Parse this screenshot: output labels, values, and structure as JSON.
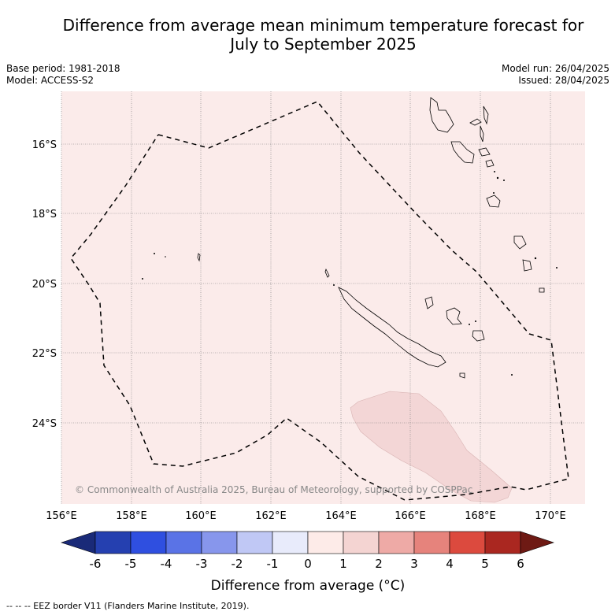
{
  "title_line1": "Difference from average mean minimum temperature forecast for",
  "title_line2": "July to September 2025",
  "meta": {
    "base_period": "Base period: 1981-2018",
    "model": "Model: ACCESS-S2",
    "model_run": "Model run: 26/04/2025",
    "issued": "Issued: 28/04/2025"
  },
  "map": {
    "background_anomaly_class": "0 to 1",
    "background_color": "#fbebea",
    "anomaly_patch_class": "1 to 2",
    "anomaly_patch_color": "#f3d6d6",
    "lon_ticks": [
      "156°E",
      "158°E",
      "160°E",
      "162°E",
      "164°E",
      "166°E",
      "168°E",
      "170°E"
    ],
    "lat_ticks": [
      "16°S",
      "18°S",
      "20°S",
      "22°S",
      "24°S"
    ],
    "copyright": "© Commonwealth of Australia 2025, Bureau of Meteorology, supported by COSPPac"
  },
  "colorbar": {
    "title": "Difference from average (°C)",
    "ticks": [
      "-6",
      "-5",
      "-4",
      "-3",
      "-2",
      "-1",
      "0",
      "1",
      "2",
      "3",
      "4",
      "5",
      "6"
    ],
    "colors": [
      "#1a2a78",
      "#2540b0",
      "#2f4fe0",
      "#5a73e6",
      "#8796ec",
      "#c0c8f5",
      "#e8ebfb",
      "#fdebe8",
      "#f4d4d2",
      "#eeaaa6",
      "#e6837c",
      "#dc4a3e",
      "#aa2720",
      "#6e1a14"
    ]
  },
  "footnote": "--  --  -- EEZ border V11 (Flanders Marine Institute, 2019)."
}
